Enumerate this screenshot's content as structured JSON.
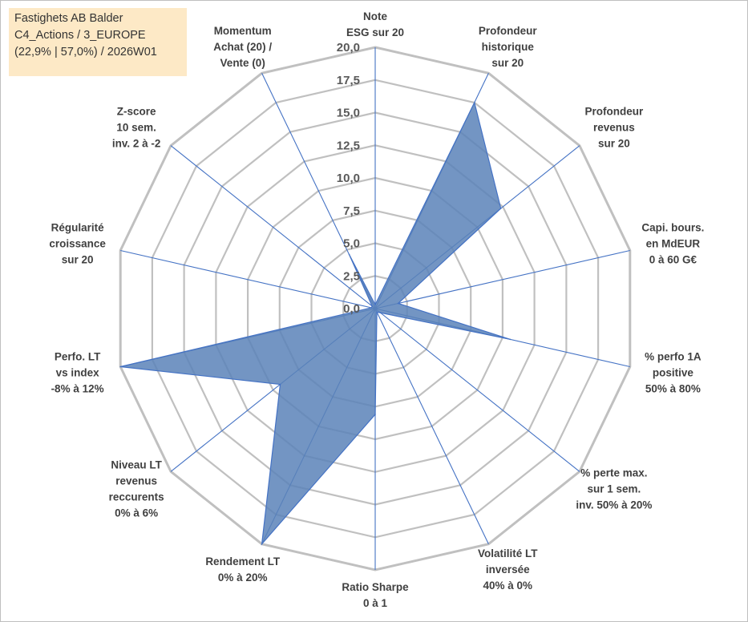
{
  "info_box": {
    "line1": "Fastighets AB Balder",
    "line2": "C4_Actions / 3_EUROPE",
    "line3": "(22,9% | 57,0%) / 2026W01"
  },
  "colors": {
    "fill": "#5b82b9",
    "outline": "#4472c4",
    "spokes": "#4472c4",
    "grid": "#c0c0c0"
  },
  "chart_data": {
    "type": "radar",
    "rmax": 20,
    "ticks": [
      {
        "value": 0,
        "label": "0,0"
      },
      {
        "value": 2.5,
        "label": "2,5"
      },
      {
        "value": 5,
        "label": "5,0"
      },
      {
        "value": 7.5,
        "label": "7,5"
      },
      {
        "value": 10,
        "label": "10,0"
      },
      {
        "value": 12.5,
        "label": "12,5"
      },
      {
        "value": 15,
        "label": "15,0"
      },
      {
        "value": 17.5,
        "label": "17,5"
      },
      {
        "value": 20,
        "label": "20,0"
      }
    ],
    "axes": [
      {
        "lines": [
          "Note",
          "ESG sur 20"
        ],
        "value": 0.3
      },
      {
        "lines": [
          "Profondeur",
          "historique",
          "sur 20"
        ],
        "value": 17.5
      },
      {
        "lines": [
          "Profondeur",
          "revenus",
          "sur 20"
        ],
        "value": 12.3
      },
      {
        "lines": [
          "Capi. bours.",
          "en MdEUR",
          "0 à 60 G€"
        ],
        "value": 1.8
      },
      {
        "lines": [
          "% perfo 1A",
          "positive",
          "50% à 80%"
        ],
        "value": 10.6
      },
      {
        "lines": [
          "% perte max.",
          "sur 1 sem.",
          "inv. 50% à 20%"
        ],
        "value": 0.5
      },
      {
        "lines": [
          "Volatilité LT",
          "inversée",
          "40% à 0%"
        ],
        "value": 0.3
      },
      {
        "lines": [
          "Ratio Sharpe",
          "0 à 1"
        ],
        "value": 8.1
      },
      {
        "lines": [
          "Rendement LT",
          "0% à 20%"
        ],
        "value": 20.0
      },
      {
        "lines": [
          "Niveau LT",
          "revenus",
          "reccurents",
          "0% à 6%"
        ],
        "value": 9.3
      },
      {
        "lines": [
          "Perfo. LT",
          "vs index",
          "-8% à 12%"
        ],
        "value": 20.0
      },
      {
        "lines": [
          "Régularité",
          "croissance",
          "sur 20"
        ],
        "value": 0.3
      },
      {
        "lines": [
          "Z-score",
          "10 sem.",
          "inv. 2 à -2"
        ],
        "value": 0.3
      },
      {
        "lines": [
          "Momentum",
          "Achat (20) /",
          "Vente (0)"
        ],
        "value": 4.6
      }
    ]
  }
}
